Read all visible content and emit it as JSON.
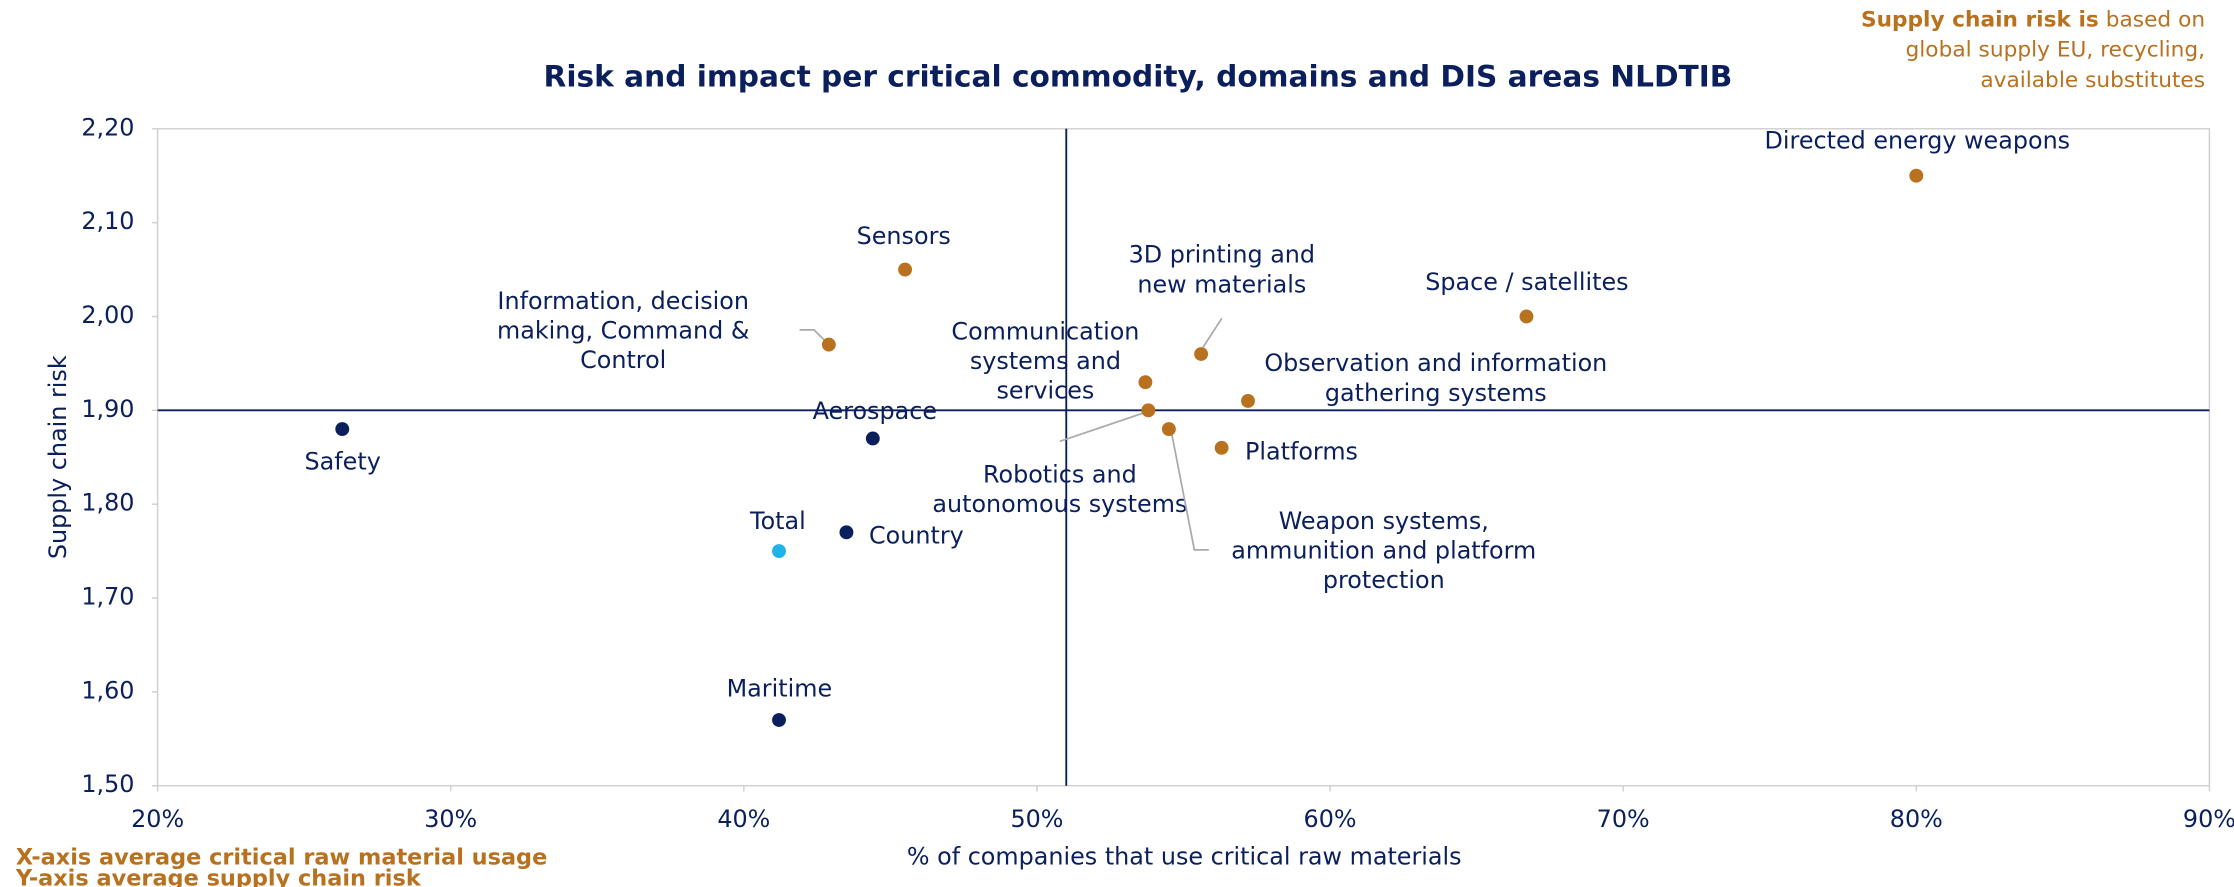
{
  "chart_data": {
    "type": "scatter",
    "title": "Risk and impact per critical commodity, domains and DIS areas NLDTIB",
    "x_label": "% of companies that use critical raw materials",
    "y_label": "Supply chain risk",
    "note": {
      "bold": "Supply chain risk is",
      "lines": [
        "based on",
        "global supply EU, recycling,",
        "available substitutes"
      ]
    },
    "footnotes": [
      "X-axis average critical raw material usage",
      "Y-axis average supply chain risk"
    ],
    "xlim": [
      20,
      90
    ],
    "xticks": [
      {
        "value": 20,
        "label": "20%"
      },
      {
        "value": 30,
        "label": "30%"
      },
      {
        "value": 40,
        "label": "40%"
      },
      {
        "value": 50,
        "label": "50%"
      },
      {
        "value": 60,
        "label": "60%"
      },
      {
        "value": 70,
        "label": "70%"
      },
      {
        "value": 80,
        "label": "80%"
      },
      {
        "value": 90,
        "label": "90%"
      }
    ],
    "ylim": [
      1.5,
      2.2
    ],
    "yticks": [
      {
        "value": 1.5,
        "label": "1,50"
      },
      {
        "value": 1.6,
        "label": "1,60"
      },
      {
        "value": 1.7,
        "label": "1,70"
      },
      {
        "value": 1.8,
        "label": "1,80"
      },
      {
        "value": 1.9,
        "label": "1,90"
      },
      {
        "value": 2.0,
        "label": "2,00"
      },
      {
        "value": 2.1,
        "label": "2,10"
      },
      {
        "value": 2.2,
        "label": "2,20"
      }
    ],
    "reference_lines": {
      "x": 51.0,
      "y": 1.9,
      "color": "#0a1f5c"
    },
    "points": [
      {
        "label": [
          "Directed energy weapons"
        ],
        "x": 80.0,
        "y": 2.15,
        "color": "#b8711f"
      },
      {
        "label": [
          "Space / satellites"
        ],
        "x": 66.7,
        "y": 2.0,
        "color": "#b8711f"
      },
      {
        "label": [
          "Sensors"
        ],
        "x": 45.5,
        "y": 2.05,
        "color": "#b8711f"
      },
      {
        "label": [
          "Information, decision",
          "making, Command &",
          "Control"
        ],
        "x": 42.9,
        "y": 1.97,
        "color": "#b8711f"
      },
      {
        "label": [
          "3D printing and",
          "new materials"
        ],
        "x": 55.6,
        "y": 1.96,
        "color": "#b8711f"
      },
      {
        "label": [
          "Communication",
          "systems and",
          "services"
        ],
        "x": 53.7,
        "y": 1.93,
        "color": "#b8711f"
      },
      {
        "label": [
          "Observation and information",
          "gathering systems"
        ],
        "x": 57.2,
        "y": 1.91,
        "color": "#b8711f"
      },
      {
        "label": [
          "Robotics and",
          "autonomous systems"
        ],
        "x": 53.8,
        "y": 1.9,
        "color": "#b8711f"
      },
      {
        "label": [
          "Weapon systems,",
          "ammunition and platform",
          "protection"
        ],
        "x": 54.5,
        "y": 1.88,
        "color": "#b8711f"
      },
      {
        "label": [
          "Platforms"
        ],
        "x": 56.3,
        "y": 1.86,
        "color": "#b8711f"
      },
      {
        "label": [
          "Safety"
        ],
        "x": 26.3,
        "y": 1.88,
        "color": "#0a1f5c"
      },
      {
        "label": [
          "Aerospace"
        ],
        "x": 44.4,
        "y": 1.87,
        "color": "#0a1f5c"
      },
      {
        "label": [
          "Country"
        ],
        "x": 43.5,
        "y": 1.77,
        "color": "#0a1f5c"
      },
      {
        "label": [
          "Total"
        ],
        "x": 41.2,
        "y": 1.75,
        "color": "#1fb3e8"
      },
      {
        "label": [
          "Maritime"
        ],
        "x": 41.2,
        "y": 1.57,
        "color": "#0a1f5c"
      }
    ]
  }
}
